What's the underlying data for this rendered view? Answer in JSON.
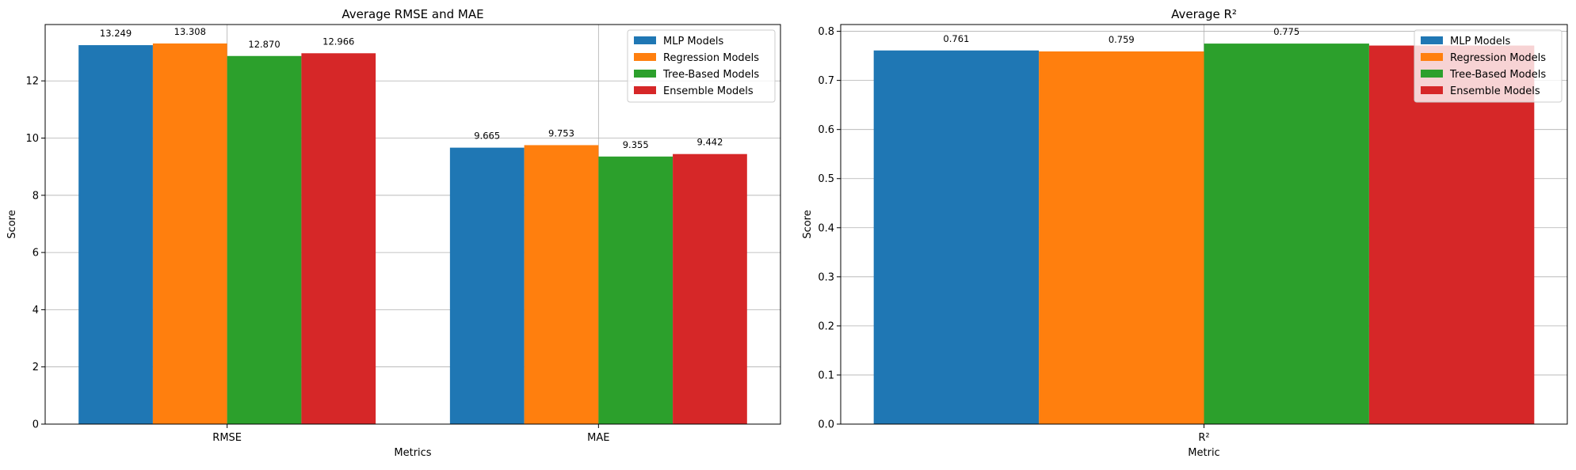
{
  "chart_data": [
    {
      "type": "bar",
      "title": "Average RMSE and MAE",
      "xlabel": "Metrics",
      "ylabel": "Score",
      "categories": [
        "RMSE",
        "MAE"
      ],
      "ylim": [
        0,
        13.97
      ],
      "yticks": [
        0,
        2,
        4,
        6,
        8,
        10,
        12
      ],
      "grid": true,
      "legend_position": "top-right",
      "series": [
        {
          "name": "MLP Models",
          "color": "#1f77b4",
          "values": [
            13.249,
            9.665
          ],
          "labels": [
            "13.249",
            "9.665"
          ]
        },
        {
          "name": "Regression Models",
          "color": "#ff7f0e",
          "values": [
            13.308,
            9.753
          ],
          "labels": [
            "13.308",
            "9.753"
          ]
        },
        {
          "name": "Tree-Based Models",
          "color": "#2ca02c",
          "values": [
            12.87,
            9.355
          ],
          "labels": [
            "12.870",
            "9.355"
          ]
        },
        {
          "name": "Ensemble Models",
          "color": "#d62728",
          "values": [
            12.966,
            9.442
          ],
          "labels": [
            "12.966",
            "9.442"
          ]
        }
      ]
    },
    {
      "type": "bar",
      "title": "Average R²",
      "xlabel": "Metric",
      "ylabel": "Score",
      "categories": [
        "R²"
      ],
      "ylim": [
        0,
        0.8138
      ],
      "yticks": [
        0.0,
        0.1,
        0.2,
        0.3,
        0.4,
        0.5,
        0.6,
        0.7,
        0.8
      ],
      "ytick_labels": [
        "0.0",
        "0.1",
        "0.2",
        "0.3",
        "0.4",
        "0.5",
        "0.6",
        "0.7",
        "0.8"
      ],
      "grid": true,
      "legend_position": "top-right",
      "series": [
        {
          "name": "MLP Models",
          "color": "#1f77b4",
          "values": [
            0.761
          ],
          "labels": [
            "0.761"
          ]
        },
        {
          "name": "Regression Models",
          "color": "#ff7f0e",
          "values": [
            0.759
          ],
          "labels": [
            "0.759"
          ]
        },
        {
          "name": "Tree-Based Models",
          "color": "#2ca02c",
          "values": [
            0.775
          ],
          "labels": [
            "0.775"
          ]
        },
        {
          "name": "Ensemble Models",
          "color": "#d62728",
          "values": [
            0.771
          ],
          "labels": [
            ""
          ]
        }
      ]
    }
  ]
}
